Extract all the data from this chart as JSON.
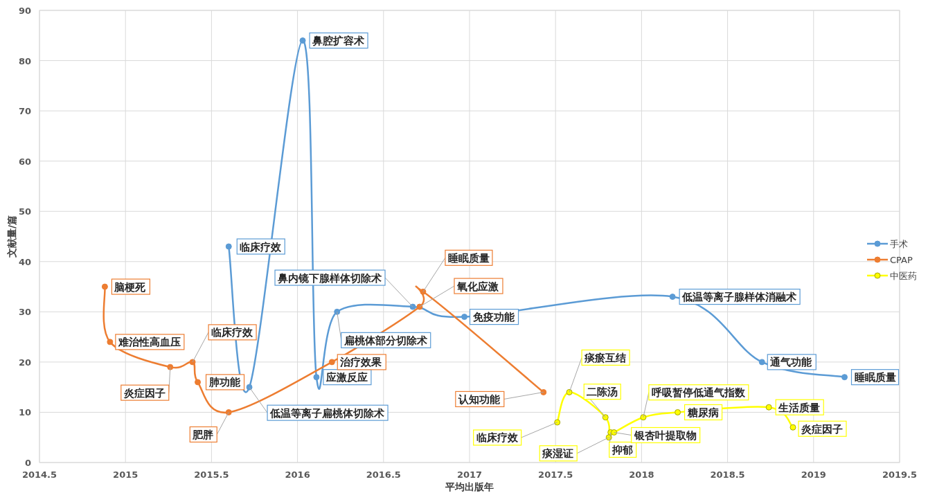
{
  "chart_data": {
    "type": "line",
    "xlabel": "平均出版年",
    "ylabel": "文献量/篇",
    "xlim": [
      2014.5,
      2019.5
    ],
    "xticks": [
      2014.5,
      2015,
      2015.5,
      2016,
      2016.5,
      2017,
      2017.5,
      2018,
      2018.5,
      2019,
      2019.5
    ],
    "ylim": [
      0,
      90
    ],
    "yticks": [
      0,
      10,
      20,
      30,
      40,
      50,
      60,
      70,
      80,
      90
    ],
    "grid": true,
    "legend": "right",
    "marker": "circle",
    "line_style": "solid",
    "series": [
      {
        "name": "手术",
        "color": "#5b9bd5",
        "x": [
          2015.6,
          2015.72,
          2016.03,
          2016.11,
          2016.23,
          2016.67,
          2016.97,
          2018.18,
          2018.7,
          2019.18
        ],
        "values": [
          43,
          15,
          84,
          17,
          30,
          31,
          29,
          33,
          20,
          17
        ]
      },
      {
        "name": "CPAP",
        "color": "#ed7d31",
        "x": [
          2014.88,
          2014.91,
          2015.26,
          2015.39,
          2015.42,
          2015.6,
          2016.2,
          2016.71,
          2016.73,
          2017.43
        ],
        "values": [
          35,
          24,
          19,
          20,
          16,
          10,
          20,
          31,
          34,
          14
        ]
      },
      {
        "name": "中医药",
        "color": "#ffff00",
        "x": [
          2017.51,
          2017.58,
          2017.79,
          2017.81,
          2017.82,
          2017.84,
          2018.01,
          2018.21,
          2018.74,
          2018.88
        ],
        "values": [
          8,
          14,
          9,
          5,
          6,
          6,
          9,
          10,
          11,
          7
        ]
      }
    ],
    "annotations": [
      {
        "text": "临床疗效",
        "x": 2015.6,
        "y": 43
      },
      {
        "text": "低温等离子扁桃体切除术",
        "x": 2015.72,
        "y": 15
      },
      {
        "text": "鼻腔扩容术",
        "x": 2016.03,
        "y": 84
      },
      {
        "text": "应激反应",
        "x": 2016.11,
        "y": 17
      },
      {
        "text": "扁桃体部分切除术",
        "x": 2016.23,
        "y": 30
      },
      {
        "text": "鼻内镜下腺样体切除术",
        "x": 2016.67,
        "y": 31
      },
      {
        "text": "免疫功能",
        "x": 2016.97,
        "y": 29
      },
      {
        "text": "低温等离子腺样体消融术",
        "x": 2018.18,
        "y": 33
      },
      {
        "text": "通气功能",
        "x": 2018.7,
        "y": 20
      },
      {
        "text": "睡眠质量",
        "x": 2019.18,
        "y": 17
      },
      {
        "text": "脑梗死",
        "x": 2014.88,
        "y": 35
      },
      {
        "text": "难治性高血压",
        "x": 2014.91,
        "y": 24
      },
      {
        "text": "炎症因子",
        "x": 2015.26,
        "y": 19
      },
      {
        "text": "临床疗效",
        "x": 2015.39,
        "y": 20
      },
      {
        "text": "肺功能",
        "x": 2015.42,
        "y": 16
      },
      {
        "text": "肥胖",
        "x": 2015.6,
        "y": 10
      },
      {
        "text": "治疗效果",
        "x": 2016.2,
        "y": 20
      },
      {
        "text": "氧化应激",
        "x": 2016.71,
        "y": 31
      },
      {
        "text": "睡眠质量",
        "x": 2016.73,
        "y": 34
      },
      {
        "text": "认知功能",
        "x": 2017.43,
        "y": 14
      },
      {
        "text": "临床疗效",
        "x": 2017.51,
        "y": 8
      },
      {
        "text": "痰瘀互结",
        "x": 2017.58,
        "y": 14
      },
      {
        "text": "二陈汤",
        "x": 2017.79,
        "y": 9
      },
      {
        "text": "痰湿证",
        "x": 2017.81,
        "y": 5
      },
      {
        "text": "抑郁",
        "x": 2017.82,
        "y": 6
      },
      {
        "text": "银杏叶提取物",
        "x": 2017.84,
        "y": 6
      },
      {
        "text": "呼吸暂停低通气指数",
        "x": 2018.01,
        "y": 9
      },
      {
        "text": "糖尿病",
        "x": 2018.21,
        "y": 10
      },
      {
        "text": "生活质量",
        "x": 2018.74,
        "y": 11
      },
      {
        "text": "炎症因子",
        "x": 2018.88,
        "y": 7
      }
    ]
  }
}
